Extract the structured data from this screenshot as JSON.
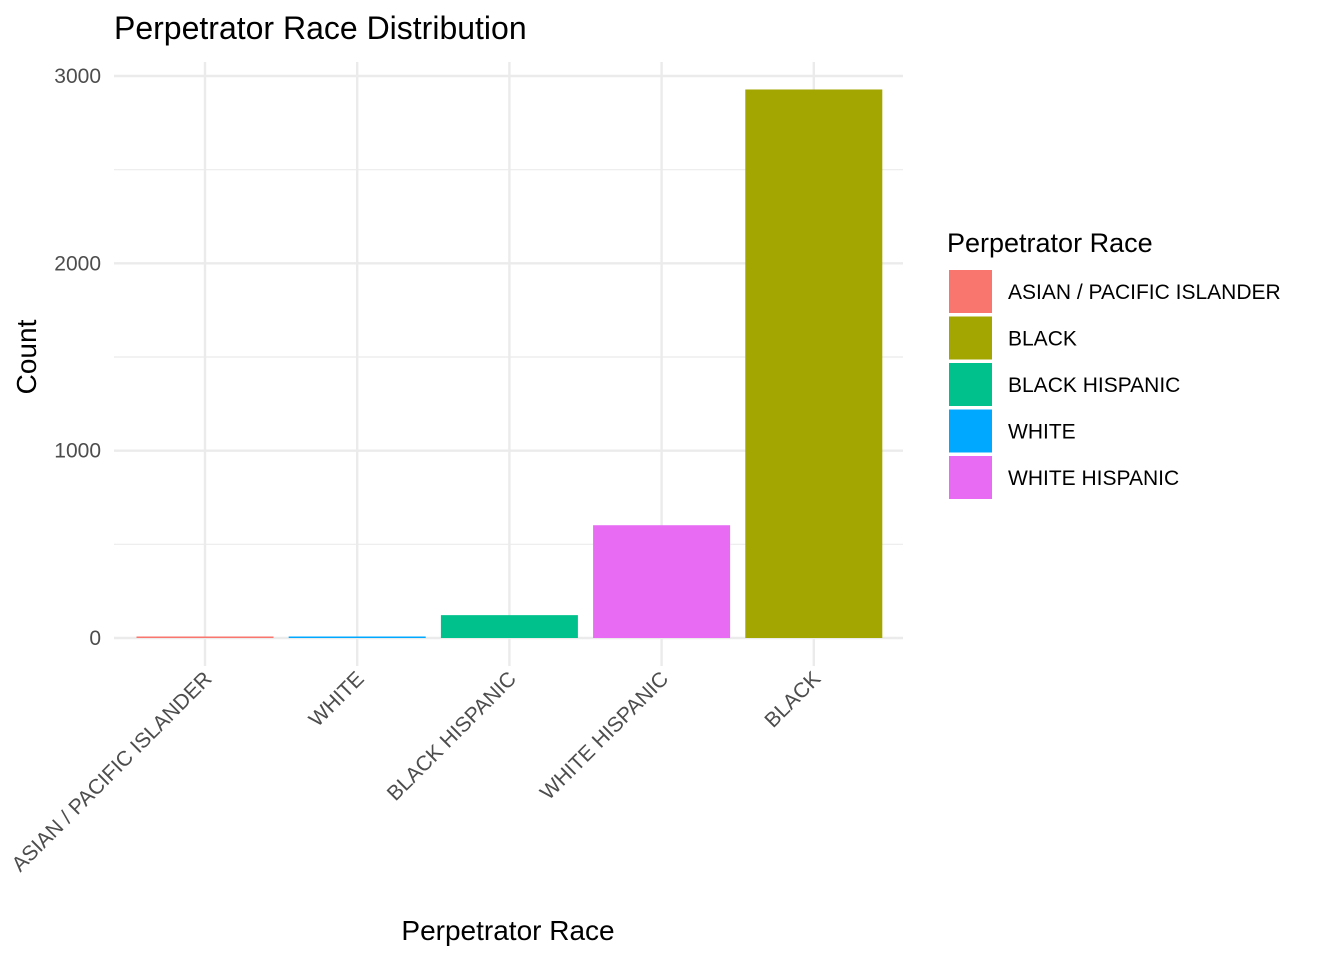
{
  "chart_data": {
    "type": "bar",
    "title": "Perpetrator Race Distribution",
    "xlabel": "Perpetrator Race",
    "ylabel": "Count",
    "categories": [
      "ASIAN / PACIFIC ISLANDER",
      "WHITE",
      "BLACK HISPANIC",
      "WHITE HISPANIC",
      "BLACK"
    ],
    "values": [
      6,
      5,
      122,
      602,
      2928
    ],
    "colors": [
      "#F8766D",
      "#00A9FF",
      "#00C08B",
      "#E76BF3",
      "#A3A500"
    ],
    "ylim": [
      0,
      3000
    ],
    "yticks": [
      0,
      1000,
      2000,
      3000
    ],
    "ytick_labels": [
      "0",
      "1000",
      "2000",
      "3000"
    ],
    "grid": true,
    "legend": {
      "title": "Perpetrator Race",
      "placement": "right",
      "items": [
        {
          "label": "ASIAN / PACIFIC ISLANDER",
          "color": "#F8766D"
        },
        {
          "label": "BLACK",
          "color": "#A3A500"
        },
        {
          "label": "BLACK HISPANIC",
          "color": "#00C08B"
        },
        {
          "label": "WHITE",
          "color": "#00A9FF"
        },
        {
          "label": "WHITE HISPANIC",
          "color": "#E76BF3"
        }
      ]
    }
  }
}
